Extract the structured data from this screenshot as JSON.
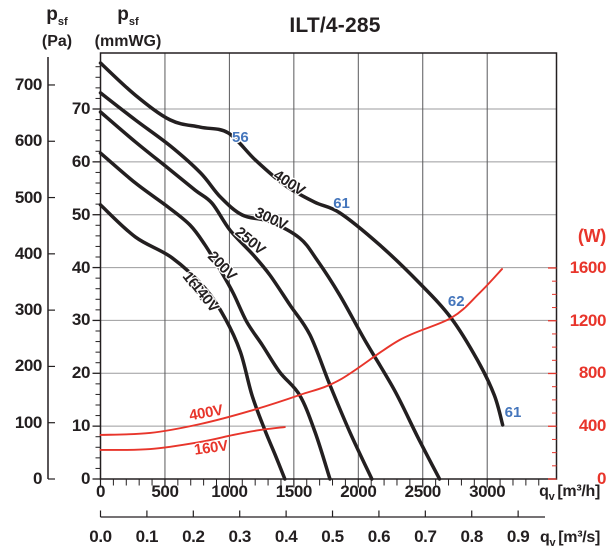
{
  "chart_data": {
    "type": "line",
    "title": "ILT/4-285",
    "axes": {
      "pa": {
        "symbol": "p",
        "symbol_sub": "sf",
        "unit": "(Pa)",
        "ticks": [
          700,
          600,
          500,
          400,
          300,
          200,
          100,
          0
        ],
        "range": [
          0,
          750
        ]
      },
      "mmwg": {
        "symbol": "p",
        "symbol_sub": "sf",
        "unit": "(mmWG)",
        "ticks": [
          70,
          60,
          50,
          40,
          30,
          20,
          10,
          0
        ],
        "minor_step": 2,
        "range": [
          0,
          80
        ]
      },
      "m3h": {
        "symbol": "q",
        "symbol_sub": "v",
        "unit": "[m³/h]",
        "ticks": [
          0,
          500,
          1000,
          1500,
          2000,
          2500,
          3000
        ],
        "minor_step": 100,
        "range": [
          0,
          3530
        ]
      },
      "m3s": {
        "symbol": "q",
        "symbol_sub": "v",
        "unit": "[m³/s]",
        "ticks": [
          "0.0",
          "0.1",
          "0.2",
          "0.3",
          "0.4",
          "0.5",
          "0.6",
          "0.7",
          "0.8",
          "0.9"
        ]
      },
      "watts": {
        "unit": "(W)",
        "ticks": [
          1600,
          1200,
          800,
          400,
          0
        ],
        "minor_step": 100,
        "range": [
          0,
          1680
        ]
      }
    },
    "series": [
      {
        "name": "400V",
        "kind": "pressure",
        "y_unit": "Pa",
        "color": "#231f20",
        "points": [
          [
            0,
            739
          ],
          [
            270,
            682
          ],
          [
            540,
            638
          ],
          [
            775,
            625
          ],
          [
            990,
            615
          ],
          [
            1200,
            567
          ],
          [
            1430,
            522
          ],
          [
            1660,
            492
          ],
          [
            1855,
            473
          ],
          [
            2165,
            416
          ],
          [
            2475,
            348
          ],
          [
            2720,
            286
          ],
          [
            2925,
            211
          ],
          [
            3055,
            149
          ],
          [
            3120,
            96
          ]
        ]
      },
      {
        "name": "300V",
        "kind": "pressure",
        "y_unit": "Pa",
        "color": "#231f20",
        "points": [
          [
            0,
            686
          ],
          [
            270,
            638
          ],
          [
            540,
            592
          ],
          [
            775,
            544
          ],
          [
            930,
            501
          ],
          [
            1100,
            469
          ],
          [
            1315,
            457
          ],
          [
            1545,
            428
          ],
          [
            1680,
            389
          ],
          [
            1855,
            327
          ],
          [
            2050,
            247
          ],
          [
            2280,
            158
          ],
          [
            2460,
            75
          ],
          [
            2630,
            0
          ]
        ]
      },
      {
        "name": "250V",
        "kind": "pressure",
        "y_unit": "Pa",
        "color": "#231f20",
        "points": [
          [
            0,
            652
          ],
          [
            270,
            599
          ],
          [
            525,
            552
          ],
          [
            735,
            513
          ],
          [
            865,
            490
          ],
          [
            1005,
            442
          ],
          [
            1185,
            398
          ],
          [
            1315,
            362
          ],
          [
            1470,
            309
          ],
          [
            1625,
            256
          ],
          [
            1780,
            167
          ],
          [
            1935,
            83
          ],
          [
            2105,
            0
          ]
        ]
      },
      {
        "name": "200V",
        "kind": "pressure",
        "y_unit": "Pa",
        "color": "#231f20",
        "points": [
          [
            0,
            579
          ],
          [
            270,
            526
          ],
          [
            525,
            483
          ],
          [
            695,
            451
          ],
          [
            810,
            416
          ],
          [
            930,
            371
          ],
          [
            1030,
            330
          ],
          [
            1135,
            279
          ],
          [
            1255,
            238
          ],
          [
            1390,
            190
          ],
          [
            1545,
            149
          ],
          [
            1665,
            83
          ],
          [
            1780,
            0
          ]
        ]
      },
      {
        "name": "160V",
        "kind": "pressure",
        "y_unit": "Pa",
        "color": "#231f20",
        "points": [
          [
            0,
            487
          ],
          [
            270,
            430
          ],
          [
            555,
            393
          ],
          [
            810,
            339
          ],
          [
            965,
            286
          ],
          [
            1085,
            226
          ],
          [
            1175,
            149
          ],
          [
            1275,
            87
          ],
          [
            1355,
            43
          ],
          [
            1430,
            0
          ]
        ]
      },
      {
        "name": "400V",
        "kind": "power",
        "y_unit": "W",
        "color": "#e8352b",
        "points": [
          [
            0,
            334
          ],
          [
            385,
            349
          ],
          [
            775,
            417
          ],
          [
            1160,
            516
          ],
          [
            1545,
            637
          ],
          [
            1855,
            751
          ],
          [
            2320,
            1054
          ],
          [
            2720,
            1221
          ],
          [
            2940,
            1410
          ],
          [
            3115,
            1592
          ]
        ]
      },
      {
        "name": "160V",
        "kind": "power",
        "y_unit": "W",
        "color": "#e8352b",
        "points": [
          [
            0,
            220
          ],
          [
            385,
            227
          ],
          [
            775,
            281
          ],
          [
            1030,
            334
          ],
          [
            1235,
            371
          ],
          [
            1430,
            394
          ]
        ]
      }
    ],
    "annotations": {
      "extra_voltage_label": "140V",
      "sound_levels_dBA": [
        {
          "text": "56",
          "q": 1085,
          "pa": 606
        },
        {
          "text": "61",
          "q": 1870,
          "pa": 489
        },
        {
          "text": "62",
          "q": 2760,
          "pa": 315
        },
        {
          "text": "61",
          "q": 3200,
          "pa": 117
        }
      ]
    }
  },
  "colors": {
    "curve_black": "#231f20",
    "power_red": "#e8352b",
    "sound_blue": "#4576bc",
    "grid_horizontal": "#9b9b9d",
    "grid_vertical": "#59595b"
  }
}
